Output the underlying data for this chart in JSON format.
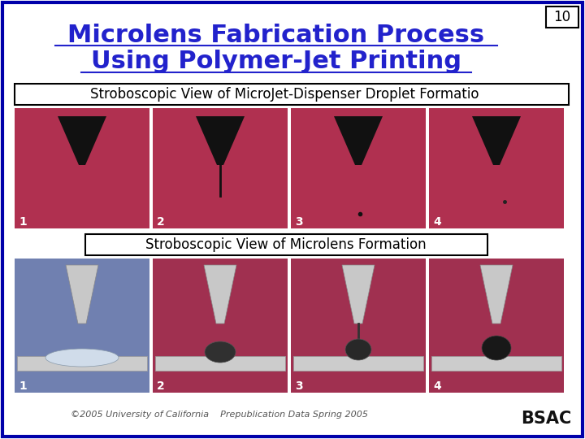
{
  "title_line1": "Microlens Fabrication Process",
  "title_line2": "Using Polymer-Jet Printing",
  "slide_number": "10",
  "subtitle1": "Stroboscopic View of MicroJet-Dispenser Droplet Formatio",
  "subtitle2": "Stroboscopic View of Microlens Formation",
  "footer": "©2005 University of California    Prepublication Data Spring 2005",
  "background_color": "#ffffff",
  "border_color": "#0000aa",
  "title_color": "#2222cc",
  "slide_num_color": "#000000",
  "subtitle_box_color": "#000000",
  "subtitle_text_color": "#000000",
  "image_labels_top": [
    "1",
    "2",
    "3",
    "4"
  ],
  "image_labels_bottom": [
    "1",
    "2",
    "3",
    "4"
  ],
  "top_images_bg": "#b03050",
  "bottom_images_bg_1": "#7080b0",
  "bottom_images_bg_234": "#a03050",
  "label_color": "#ffffff",
  "footer_color": "#555555"
}
